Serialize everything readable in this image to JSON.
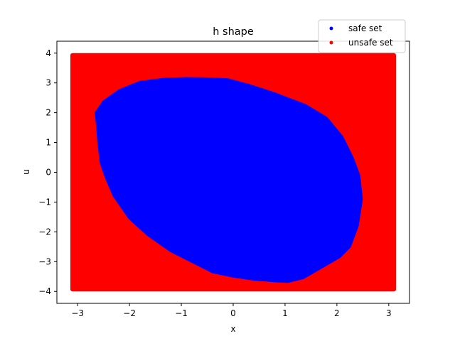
{
  "chart_data": {
    "type": "scatter",
    "title": "h shape",
    "xlabel": "x",
    "ylabel": "u",
    "xlim": [
      -3.4,
      3.4
    ],
    "ylim": [
      -4.4,
      4.4
    ],
    "xticks": [
      -3,
      -2,
      -1,
      0,
      1,
      2,
      3
    ],
    "yticks": [
      -4,
      -3,
      -2,
      -1,
      0,
      1,
      2,
      3,
      4
    ],
    "grid": false,
    "legend_position": "top-right",
    "series": [
      {
        "name": "unsafe set",
        "color": "#ff0000",
        "region": "rectangle",
        "x_range": [
          -3.14,
          3.14
        ],
        "y_range": [
          -4.0,
          4.0
        ]
      },
      {
        "name": "safe set",
        "color": "#0000ff",
        "region": "polygon",
        "boundary": [
          [
            -0.5,
            3.15
          ],
          [
            -0.1,
            3.12
          ],
          [
            0.3,
            2.93
          ],
          [
            0.8,
            2.65
          ],
          [
            1.4,
            2.25
          ],
          [
            1.8,
            1.83
          ],
          [
            2.1,
            1.2
          ],
          [
            2.3,
            0.5
          ],
          [
            2.43,
            -0.1
          ],
          [
            2.48,
            -0.9
          ],
          [
            2.4,
            -1.8
          ],
          [
            2.25,
            -2.5
          ],
          [
            2.05,
            -2.85
          ],
          [
            1.7,
            -3.2
          ],
          [
            1.35,
            -3.55
          ],
          [
            1.05,
            -3.68
          ],
          [
            0.85,
            -3.66
          ],
          [
            0.4,
            -3.6
          ],
          [
            0.0,
            -3.5
          ],
          [
            -0.4,
            -3.35
          ],
          [
            -0.8,
            -3.0
          ],
          [
            -1.2,
            -2.65
          ],
          [
            -1.65,
            -2.1
          ],
          [
            -2.0,
            -1.55
          ],
          [
            -2.3,
            -0.8
          ],
          [
            -2.45,
            -0.2
          ],
          [
            -2.55,
            0.3
          ],
          [
            -2.6,
            1.0
          ],
          [
            -2.62,
            1.5
          ],
          [
            -2.65,
            2.0
          ],
          [
            -2.5,
            2.38
          ],
          [
            -2.2,
            2.75
          ],
          [
            -1.8,
            3.03
          ],
          [
            -1.3,
            3.14
          ],
          [
            -0.9,
            3.16
          ]
        ]
      }
    ],
    "legend_order": [
      "safe set",
      "unsafe set"
    ]
  }
}
